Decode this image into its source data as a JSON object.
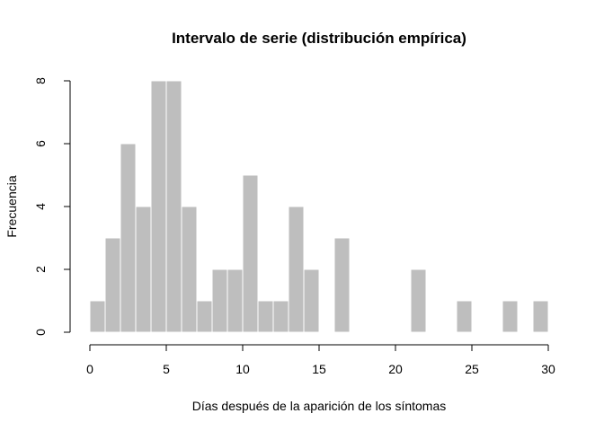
{
  "chart_data": {
    "type": "bar",
    "title": "Intervalo de serie (distribución empírica)",
    "xlabel": "Días después de la aparición de los síntomas",
    "ylabel": "Frecuencia",
    "bin_width": 1,
    "x": [
      0,
      1,
      2,
      3,
      4,
      5,
      6,
      7,
      8,
      9,
      10,
      11,
      12,
      13,
      14,
      15,
      16,
      17,
      18,
      19,
      20,
      21,
      22,
      23,
      24,
      25,
      26,
      27,
      28,
      29
    ],
    "values": [
      1,
      3,
      6,
      4,
      8,
      8,
      4,
      1,
      2,
      2,
      5,
      1,
      1,
      4,
      2,
      0,
      3,
      0,
      0,
      0,
      0,
      2,
      0,
      0,
      1,
      0,
      0,
      1,
      0,
      1
    ],
    "xlim": [
      0,
      30
    ],
    "ylim": [
      0,
      8
    ],
    "x_ticks": [
      0,
      5,
      10,
      15,
      20,
      25,
      30
    ],
    "y_ticks": [
      0,
      2,
      4,
      6,
      8
    ],
    "bar_color": "#bebebe",
    "grid": false,
    "legend": "none"
  }
}
